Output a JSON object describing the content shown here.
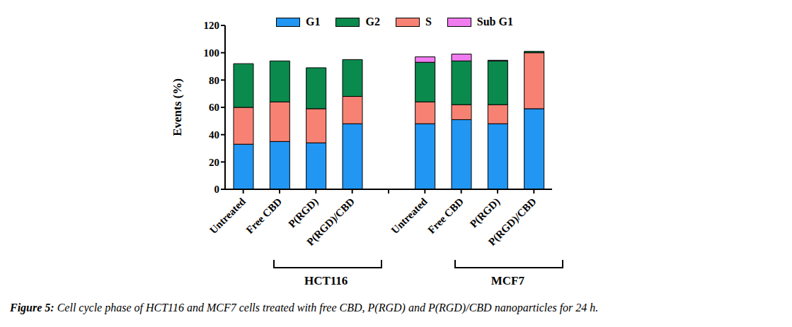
{
  "chart_data": {
    "type": "bar",
    "stacked": true,
    "ylabel": "Events (%)",
    "caption": "Figure 5: Cell cycle phase of HCT116 and MCF7 cells treated with free CBD, P(RGD) and P(RGD)/CBD nanoparticles for 24 h.",
    "groups": [
      "HCT116",
      "MCF7"
    ],
    "categories": [
      "Untreated",
      "Free CBD",
      "P(RGD)",
      "P(RGD)/CBD",
      null,
      "Untreated",
      "Free CBD",
      "P(RGD)",
      "P(RGD)/CBD"
    ],
    "series": [
      {
        "name": "G1",
        "color": "#2196f3",
        "values": [
          33,
          35,
          34,
          48,
          null,
          48,
          51,
          48,
          59
        ]
      },
      {
        "name": "S",
        "color": "#f78273",
        "values": [
          27,
          29,
          25,
          20,
          null,
          16,
          11,
          14,
          41
        ]
      },
      {
        "name": "G2",
        "color": "#0b8a4e",
        "values": [
          32,
          30,
          30,
          27,
          null,
          29,
          32,
          32,
          1
        ]
      },
      {
        "name": "Sub G1",
        "color": "#f07cf0",
        "values": [
          0,
          0,
          0,
          0,
          null,
          4,
          5,
          0.5,
          0
        ]
      }
    ],
    "ylim": [
      0,
      120
    ],
    "yticks": [
      0,
      20,
      40,
      60,
      80,
      100,
      120
    ],
    "grid": false,
    "legend": "top"
  }
}
